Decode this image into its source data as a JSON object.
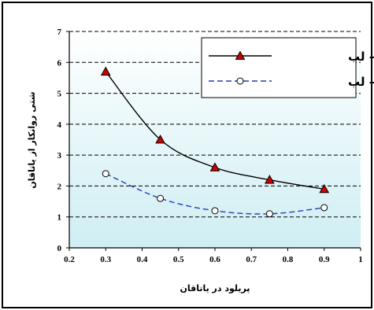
{
  "chart_data": {
    "type": "line",
    "x": [
      0.3,
      0.45,
      0.6,
      0.75,
      0.9
    ],
    "series": [
      {
        "name": "دو – لب",
        "values": [
          5.7,
          3.5,
          2.6,
          2.2,
          1.9
        ],
        "color": "#000000",
        "marker": "triangle",
        "marker_color": "#cc0000",
        "style": "solid"
      },
      {
        "name": "سه – لب",
        "values": [
          2.4,
          1.6,
          1.2,
          1.1,
          1.3
        ],
        "color": "#1f3fb5",
        "marker": "circle",
        "marker_color": "#ffffff",
        "style": "dashed"
      }
    ],
    "xlabel": "پریلود در یاتاقان",
    "ylabel": "شتی روانکار از یاتاقان",
    "xlim": [
      0.2,
      1.0
    ],
    "ylim": [
      0,
      7
    ],
    "xticks": [
      "0.2",
      "0.3",
      "0.4",
      "0.5",
      "0.6",
      "0.7",
      "0.8",
      "0.9",
      "1"
    ],
    "yticks": [
      "0",
      "1",
      "2",
      "3",
      "4",
      "5",
      "6",
      "7"
    ],
    "grid": "horizontal dashed",
    "legend_position": "top-right",
    "plot_background": "#cfeef3"
  }
}
